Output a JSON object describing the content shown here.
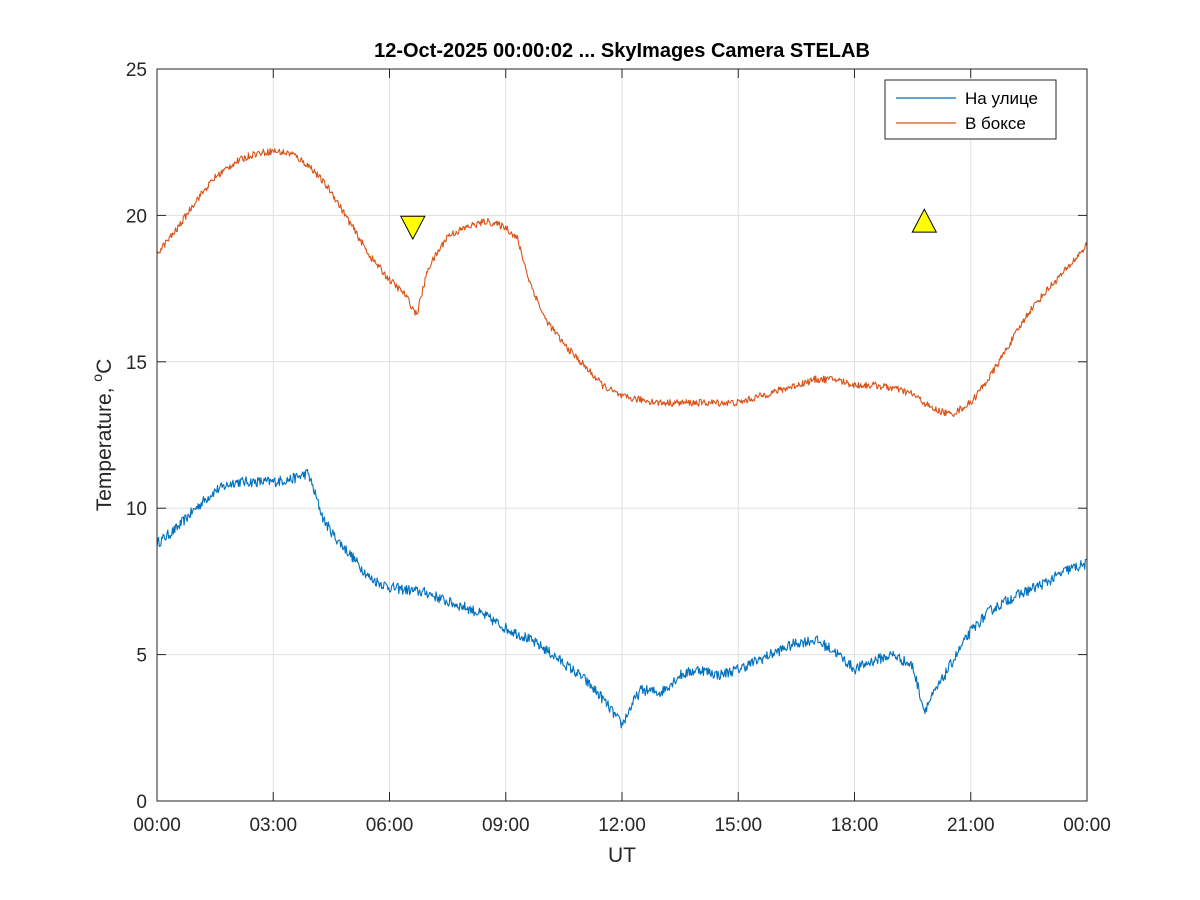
{
  "chart_data": {
    "type": "line",
    "title": "12-Oct-2025 00:00:02 ... SkyImages Camera STELAB",
    "xlabel": "UT",
    "ylabel_main": "Temperature, ",
    "ylabel_sup": "o",
    "ylabel_unit": "C",
    "xlim_hours": [
      0,
      24
    ],
    "ylim": [
      0,
      25
    ],
    "xticks": [
      {
        "hour": 0,
        "label": "00:00"
      },
      {
        "hour": 3,
        "label": "03:00"
      },
      {
        "hour": 6,
        "label": "06:00"
      },
      {
        "hour": 9,
        "label": "09:00"
      },
      {
        "hour": 12,
        "label": "12:00"
      },
      {
        "hour": 15,
        "label": "15:00"
      },
      {
        "hour": 18,
        "label": "18:00"
      },
      {
        "hour": 21,
        "label": "21:00"
      },
      {
        "hour": 24,
        "label": "00:00"
      }
    ],
    "yticks": [
      0,
      5,
      10,
      15,
      20,
      25
    ],
    "grid": true,
    "legend_position": "top-right",
    "series": [
      {
        "name": "На улице",
        "color": "#0072BD",
        "noise": 0.18,
        "points": [
          [
            0.0,
            8.8
          ],
          [
            0.5,
            9.3
          ],
          [
            1.0,
            10.0
          ],
          [
            1.5,
            10.6
          ],
          [
            2.0,
            10.9
          ],
          [
            2.5,
            10.9
          ],
          [
            3.0,
            10.9
          ],
          [
            3.5,
            11.0
          ],
          [
            3.9,
            11.2
          ],
          [
            4.0,
            10.8
          ],
          [
            4.3,
            9.6
          ],
          [
            4.6,
            9.0
          ],
          [
            5.0,
            8.4
          ],
          [
            5.5,
            7.6
          ],
          [
            6.0,
            7.3
          ],
          [
            6.5,
            7.2
          ],
          [
            7.0,
            7.1
          ],
          [
            7.5,
            6.8
          ],
          [
            8.0,
            6.6
          ],
          [
            8.5,
            6.3
          ],
          [
            9.0,
            5.9
          ],
          [
            9.5,
            5.6
          ],
          [
            10.0,
            5.2
          ],
          [
            10.5,
            4.7
          ],
          [
            11.0,
            4.2
          ],
          [
            11.5,
            3.5
          ],
          [
            12.0,
            2.6
          ],
          [
            12.3,
            3.4
          ],
          [
            12.5,
            3.8
          ],
          [
            13.0,
            3.7
          ],
          [
            13.5,
            4.3
          ],
          [
            14.0,
            4.5
          ],
          [
            14.5,
            4.3
          ],
          [
            15.0,
            4.5
          ],
          [
            15.5,
            4.8
          ],
          [
            16.0,
            5.1
          ],
          [
            16.5,
            5.4
          ],
          [
            17.0,
            5.5
          ],
          [
            17.5,
            5.1
          ],
          [
            18.0,
            4.5
          ],
          [
            18.5,
            4.8
          ],
          [
            19.0,
            5.0
          ],
          [
            19.5,
            4.6
          ],
          [
            19.8,
            3.1
          ],
          [
            20.2,
            4.0
          ],
          [
            20.5,
            4.7
          ],
          [
            21.0,
            5.8
          ],
          [
            21.5,
            6.5
          ],
          [
            22.0,
            6.9
          ],
          [
            22.5,
            7.2
          ],
          [
            23.0,
            7.5
          ],
          [
            23.5,
            7.9
          ],
          [
            24.0,
            8.1
          ]
        ]
      },
      {
        "name": "В боксе",
        "color": "#D95319",
        "noise": 0.12,
        "points": [
          [
            0.0,
            18.7
          ],
          [
            0.5,
            19.5
          ],
          [
            1.0,
            20.5
          ],
          [
            1.5,
            21.3
          ],
          [
            2.0,
            21.8
          ],
          [
            2.5,
            22.1
          ],
          [
            3.0,
            22.2
          ],
          [
            3.5,
            22.1
          ],
          [
            4.0,
            21.6
          ],
          [
            4.5,
            20.8
          ],
          [
            5.0,
            19.7
          ],
          [
            5.5,
            18.6
          ],
          [
            6.0,
            17.8
          ],
          [
            6.4,
            17.3
          ],
          [
            6.7,
            16.6
          ],
          [
            7.0,
            18.2
          ],
          [
            7.5,
            19.3
          ],
          [
            8.0,
            19.6
          ],
          [
            8.5,
            19.8
          ],
          [
            9.0,
            19.6
          ],
          [
            9.3,
            19.2
          ],
          [
            9.6,
            17.8
          ],
          [
            10.0,
            16.5
          ],
          [
            10.5,
            15.6
          ],
          [
            11.0,
            14.9
          ],
          [
            11.5,
            14.2
          ],
          [
            12.0,
            13.8
          ],
          [
            12.5,
            13.7
          ],
          [
            13.0,
            13.6
          ],
          [
            13.5,
            13.6
          ],
          [
            14.0,
            13.6
          ],
          [
            14.5,
            13.6
          ],
          [
            15.0,
            13.6
          ],
          [
            15.5,
            13.8
          ],
          [
            16.0,
            14.0
          ],
          [
            16.5,
            14.2
          ],
          [
            17.0,
            14.4
          ],
          [
            17.5,
            14.4
          ],
          [
            18.0,
            14.2
          ],
          [
            18.5,
            14.2
          ],
          [
            19.0,
            14.1
          ],
          [
            19.5,
            13.9
          ],
          [
            20.0,
            13.4
          ],
          [
            20.5,
            13.2
          ],
          [
            21.0,
            13.6
          ],
          [
            21.5,
            14.5
          ],
          [
            22.0,
            15.6
          ],
          [
            22.5,
            16.7
          ],
          [
            23.0,
            17.5
          ],
          [
            23.5,
            18.2
          ],
          [
            24.0,
            19.0
          ]
        ]
      }
    ],
    "markers": [
      {
        "type": "triangle-down",
        "hour": 6.6,
        "value": 19.6,
        "color": "#FFFF00",
        "meaning": "sunset-marker"
      },
      {
        "type": "triangle-up",
        "hour": 19.8,
        "value": 19.8,
        "color": "#FFFF00",
        "meaning": "sunrise-marker"
      }
    ],
    "colors": {
      "axes": "#262626",
      "grid": "#DFDFDF"
    }
  }
}
